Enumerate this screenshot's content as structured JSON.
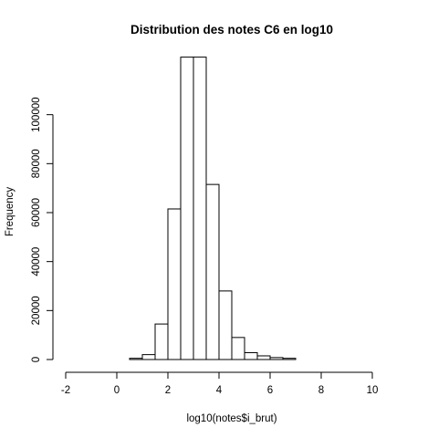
{
  "chart_data": {
    "type": "bar",
    "title": "Distribution des notes C6 en log10",
    "xlabel": "log10(notes$i_brut)",
    "ylabel": "Frequency",
    "xlim": [
      -2,
      11
    ],
    "ylim": [
      0,
      120000
    ],
    "x_ticks": [
      -2,
      0,
      2,
      4,
      6,
      8,
      10
    ],
    "x_tick_labels": [
      "-2",
      "0",
      "2",
      "4",
      "6",
      "8",
      "10"
    ],
    "y_ticks": [
      0,
      20000,
      40000,
      60000,
      80000,
      100000
    ],
    "y_tick_labels": [
      "0",
      "20000",
      "40000",
      "60000",
      "80000",
      "100000"
    ],
    "bin_edges": [
      -2,
      -1.5,
      -1,
      -0.5,
      0,
      0.5,
      1,
      1.5,
      2,
      2.5,
      3,
      3.5,
      4,
      4.5,
      5,
      5.5,
      6,
      6.5,
      7,
      7.5,
      8,
      8.5,
      9,
      9.5,
      10,
      10.5,
      11
    ],
    "values": [
      0,
      0,
      0,
      0,
      0,
      500,
      2000,
      14500,
      61500,
      123500,
      123500,
      71500,
      28000,
      9000,
      2800,
      1500,
      800,
      500,
      0,
      0,
      0,
      0,
      0,
      0,
      0,
      0
    ],
    "grid": false,
    "legend": "none",
    "colors": {
      "bar_fill": "#ffffff",
      "bar_stroke": "#000000",
      "axis": "#000000"
    }
  }
}
